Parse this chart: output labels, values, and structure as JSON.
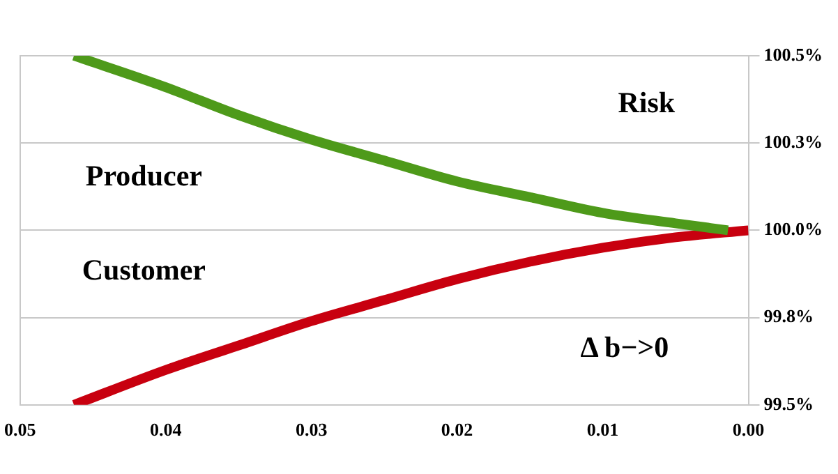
{
  "chart_data": {
    "type": "line",
    "x": [
      0.0463,
      0.04,
      0.035,
      0.03,
      0.025,
      0.02,
      0.015,
      0.01,
      0.005,
      0.0014
    ],
    "series": [
      {
        "color": "#4e9a1a",
        "values": [
          100.5,
          100.41,
          100.33,
          100.26,
          100.2,
          100.14,
          100.095,
          100.05,
          100.02,
          100.0
        ]
      },
      {
        "color": "#c8000f",
        "x": [
          0.0463,
          0.04,
          0.035,
          0.03,
          0.025,
          0.02,
          0.015,
          0.01,
          0.005,
          0.0
        ],
        "values": [
          99.5,
          99.6,
          99.67,
          99.74,
          99.8,
          99.86,
          99.91,
          99.95,
          99.98,
          100.0
        ]
      }
    ],
    "xlim": [
      0.05,
      0
    ],
    "xticks": [
      {
        "value": 0.05,
        "label": "0.05"
      },
      {
        "value": 0.04,
        "label": "0.04"
      },
      {
        "value": 0.03,
        "label": "0.03"
      },
      {
        "value": 0.02,
        "label": "0.02"
      },
      {
        "value": 0.01,
        "label": "0.01"
      },
      {
        "value": 0,
        "label": "0.00"
      }
    ],
    "ylim": [
      99.5,
      100.5
    ],
    "yticks": [
      {
        "value": 99.5,
        "label": "99.5%"
      },
      {
        "value": 99.75,
        "label": "99.8%"
      },
      {
        "value": 100,
        "label": "100.0%"
      },
      {
        "value": 100.25,
        "label": "100.3%"
      },
      {
        "value": 100.5,
        "label": "100.5%"
      }
    ],
    "grid": "y",
    "legend": false,
    "marker": "none",
    "line_style": "solid",
    "annotations": [
      "Risk",
      "Producer",
      "Customer",
      "Δ b−>0"
    ]
  }
}
